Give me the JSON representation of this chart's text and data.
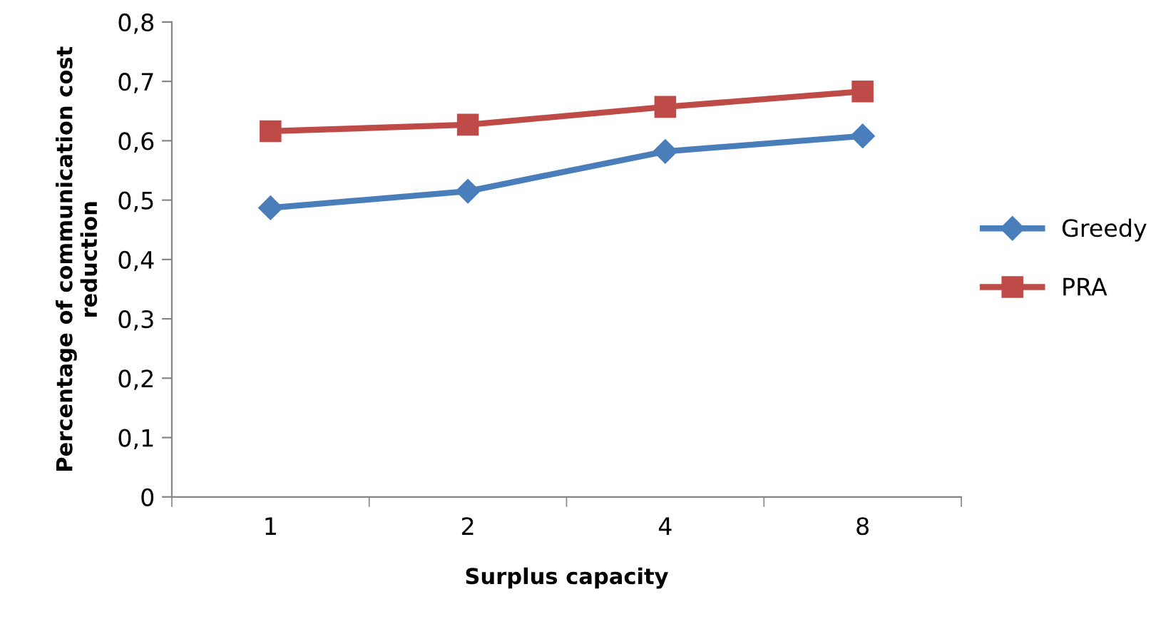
{
  "chart_data": {
    "type": "line",
    "xlabel": "Surplus capacity",
    "ylabel": "Percentage of communication cost\nreduction",
    "categories": [
      "1",
      "2",
      "4",
      "8"
    ],
    "series": [
      {
        "name": "Greedy",
        "color": "#4a7ebb",
        "marker": "diamond",
        "values": [
          0.487,
          0.515,
          0.582,
          0.608
        ]
      },
      {
        "name": "PRA",
        "color": "#be4b48",
        "marker": "square",
        "values": [
          0.616,
          0.627,
          0.657,
          0.683
        ]
      }
    ],
    "ylim": [
      0,
      0.8
    ],
    "yticks": [
      0,
      {
        "value": 0.1,
        "label": "0,1"
      },
      {
        "value": 0.2,
        "label": "0,2"
      },
      {
        "value": 0.3,
        "label": "0,3"
      },
      {
        "value": 0.4,
        "label": "0,4"
      },
      {
        "value": 0.5,
        "label": "0,5"
      },
      {
        "value": 0.6,
        "label": "0,6"
      },
      {
        "value": 0.7,
        "label": "0,7"
      },
      {
        "value": 0.8,
        "label": "0,8"
      }
    ],
    "grid": false,
    "legend": "right",
    "line_style": "solid"
  }
}
